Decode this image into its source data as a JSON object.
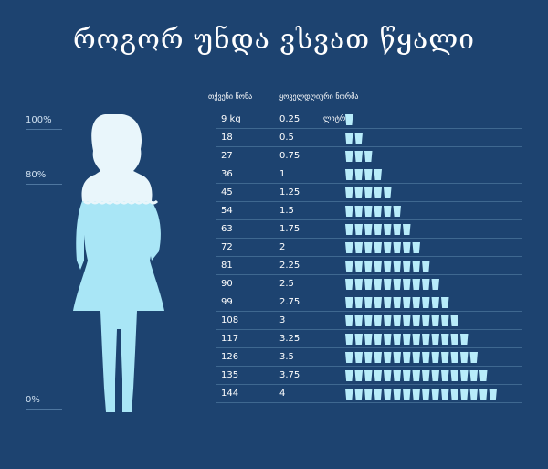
{
  "title": "როგორ უნდა ვსვათ წყალი",
  "headers": {
    "weight": "თქვენი წონა",
    "norm": "ყოველდღიური ნორმა"
  },
  "scale_labels": [
    "100%",
    "80%",
    "0%"
  ],
  "first_row_unit": "ლიტრი",
  "colors": {
    "background": "#1d4370",
    "accent": "#a9e6f6",
    "glass": "#b8ecfa"
  },
  "chart_data": {
    "type": "table",
    "title": "როგორ უნდა ვსვათ წყალი",
    "columns": [
      "თქვენი წონა",
      "ყოველდღიური ნორმა"
    ],
    "rows": [
      {
        "weight": "9 kg",
        "liters": "0.25",
        "glasses": 1
      },
      {
        "weight": "18",
        "liters": "0.5",
        "glasses": 2
      },
      {
        "weight": "27",
        "liters": "0.75",
        "glasses": 3
      },
      {
        "weight": "36",
        "liters": "1",
        "glasses": 4
      },
      {
        "weight": "45",
        "liters": "1.25",
        "glasses": 5
      },
      {
        "weight": "54",
        "liters": "1.5",
        "glasses": 6
      },
      {
        "weight": "63",
        "liters": "1.75",
        "glasses": 7
      },
      {
        "weight": "72",
        "liters": "2",
        "glasses": 8
      },
      {
        "weight": "81",
        "liters": "2.25",
        "glasses": 9
      },
      {
        "weight": "90",
        "liters": "2.5",
        "glasses": 10
      },
      {
        "weight": "99",
        "liters": "2.75",
        "glasses": 11
      },
      {
        "weight": "108",
        "liters": "3",
        "glasses": 12
      },
      {
        "weight": "117",
        "liters": "3.25",
        "glasses": 13
      },
      {
        "weight": "126",
        "liters": "3.5",
        "glasses": 14
      },
      {
        "weight": "135",
        "liters": "3.75",
        "glasses": 15
      },
      {
        "weight": "144",
        "liters": "4",
        "glasses": 16
      }
    ]
  }
}
